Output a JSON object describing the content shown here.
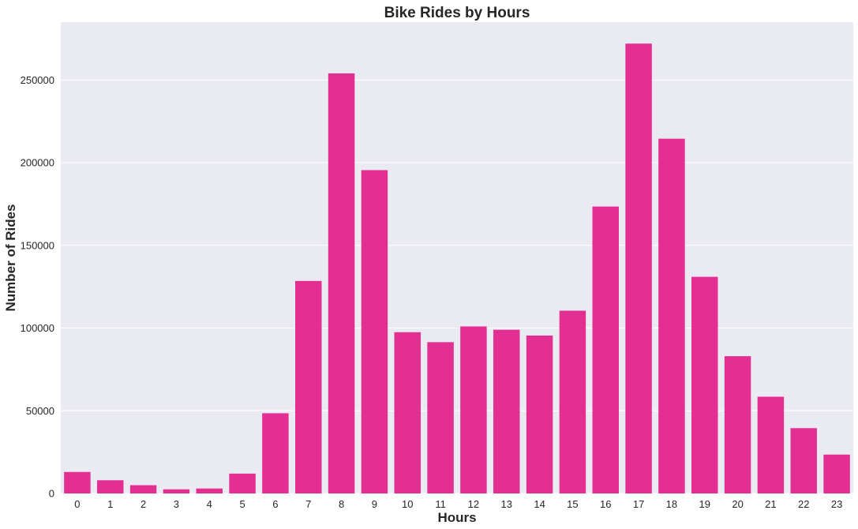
{
  "colors": {
    "bar": "#e32f92",
    "plot_background": "#eaeaf2",
    "grid": "#ffffff",
    "text": "#262626"
  },
  "chart_data": {
    "type": "bar",
    "title": "Bike Rides by Hours",
    "xlabel": "Hours",
    "ylabel": "Number of Rides",
    "categories": [
      "0",
      "1",
      "2",
      "3",
      "4",
      "5",
      "6",
      "7",
      "8",
      "9",
      "10",
      "11",
      "12",
      "13",
      "14",
      "15",
      "16",
      "17",
      "18",
      "19",
      "20",
      "21",
      "22",
      "23"
    ],
    "values": [
      13000,
      8000,
      5000,
      2500,
      3000,
      12000,
      48500,
      128500,
      254000,
      195500,
      97500,
      91500,
      101000,
      99000,
      95500,
      110500,
      173500,
      272000,
      214500,
      131000,
      83000,
      58500,
      39500,
      23500
    ],
    "ylim": [
      0,
      285000
    ],
    "yticks": [
      0,
      50000,
      100000,
      150000,
      200000,
      250000
    ],
    "ytick_labels": [
      "0",
      "50000",
      "100000",
      "150000",
      "200000",
      "250000"
    ],
    "grid": true,
    "grid_axis": "y",
    "legend": false
  }
}
